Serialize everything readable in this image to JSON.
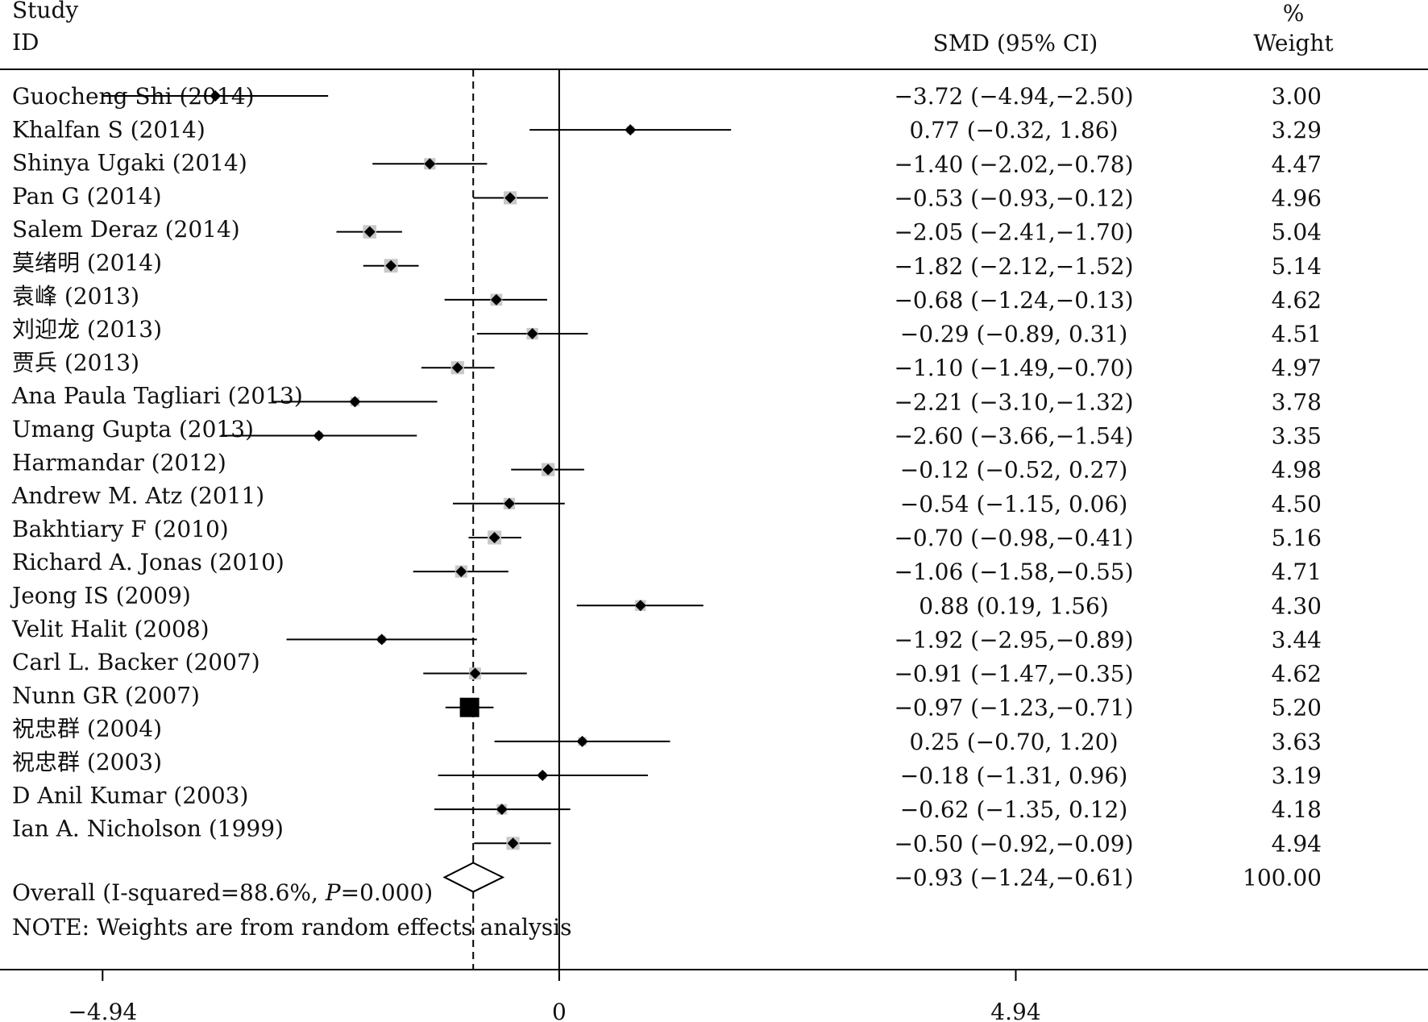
{
  "header": {
    "study_line1": "Study",
    "study_line2": "ID",
    "smd_header": "SMD (95% CI)",
    "weight_line1": "%",
    "weight_line2": "Weight"
  },
  "chart_data": {
    "type": "forest",
    "xlim": [
      -6.05,
      9.4
    ],
    "x_ticks": [
      -4.94,
      0,
      4.94
    ],
    "x_tick_labels": [
      "−4.94",
      "0",
      "4.94"
    ],
    "null_line": 0,
    "overall_line": -0.93,
    "study_labels": [
      "Guocheng Shi (2014)",
      "Khalfan S (2014)",
      "Shinya Ugaki (2014)",
      "Pan G (2014)",
      "Salem Deraz (2014)",
      "莫绪明 (2014)",
      "袁峰 (2013)",
      "刘迎龙 (2013)",
      "贾兵 (2013)",
      "Ana Paula Tagliari (2013)",
      "Umang Gupta (2013)",
      "Harmandar (2012)",
      "Andrew M. Atz (2011)",
      "Bakhtiary F (2010)",
      "Richard A. Jonas (2010)",
      "Jeong IS (2009)",
      "Velit Halit (2008)",
      "Carl L. Backer (2007)",
      "Nunn GR (2007)",
      "祝忠群 (2004)",
      "祝忠群 (2003)",
      "D Anil Kumar (2003)",
      "Ian A. Nicholson (1999)"
    ],
    "estimates": [
      {
        "smd": -3.72,
        "lo": -4.94,
        "hi": -2.5,
        "weight": 3.0,
        "text": "−3.72 (−4.94,−2.50)",
        "weight_text": "3.00"
      },
      {
        "smd": 0.77,
        "lo": -0.32,
        "hi": 1.86,
        "weight": 3.29,
        "text": "0.77 (−0.32, 1.86)",
        "weight_text": "3.29"
      },
      {
        "smd": -1.4,
        "lo": -2.02,
        "hi": -0.78,
        "weight": 4.47,
        "text": "−1.40 (−2.02,−0.78)",
        "weight_text": "4.47"
      },
      {
        "smd": -0.53,
        "lo": -0.93,
        "hi": -0.12,
        "weight": 4.96,
        "text": "−0.53 (−0.93,−0.12)",
        "weight_text": "4.96"
      },
      {
        "smd": -2.05,
        "lo": -2.41,
        "hi": -1.7,
        "weight": 5.04,
        "text": "−2.05 (−2.41,−1.70)",
        "weight_text": "5.04"
      },
      {
        "smd": -1.82,
        "lo": -2.12,
        "hi": -1.52,
        "weight": 5.14,
        "text": "−1.82 (−2.12,−1.52)",
        "weight_text": "5.14"
      },
      {
        "smd": -0.68,
        "lo": -1.24,
        "hi": -0.13,
        "weight": 4.62,
        "text": "−0.68 (−1.24,−0.13)",
        "weight_text": "4.62"
      },
      {
        "smd": -0.29,
        "lo": -0.89,
        "hi": 0.31,
        "weight": 4.51,
        "text": "−0.29 (−0.89, 0.31)",
        "weight_text": "4.51"
      },
      {
        "smd": -1.1,
        "lo": -1.49,
        "hi": -0.7,
        "weight": 4.97,
        "text": "−1.10 (−1.49,−0.70)",
        "weight_text": "4.97"
      },
      {
        "smd": -2.21,
        "lo": -3.1,
        "hi": -1.32,
        "weight": 3.78,
        "text": "−2.21 (−3.10,−1.32)",
        "weight_text": "3.78"
      },
      {
        "smd": -2.6,
        "lo": -3.66,
        "hi": -1.54,
        "weight": 3.35,
        "text": "−2.60 (−3.66,−1.54)",
        "weight_text": "3.35"
      },
      {
        "smd": -0.12,
        "lo": -0.52,
        "hi": 0.27,
        "weight": 4.98,
        "text": "−0.12 (−0.52, 0.27)",
        "weight_text": "4.98"
      },
      {
        "smd": -0.54,
        "lo": -1.15,
        "hi": 0.06,
        "weight": 4.5,
        "text": "−0.54 (−1.15, 0.06)",
        "weight_text": "4.50"
      },
      {
        "smd": -0.7,
        "lo": -0.98,
        "hi": -0.41,
        "weight": 5.16,
        "text": "−0.70 (−0.98,−0.41)",
        "weight_text": "5.16"
      },
      {
        "smd": -1.06,
        "lo": -1.58,
        "hi": -0.55,
        "weight": 4.71,
        "text": "−1.06 (−1.58,−0.55)",
        "weight_text": "4.71"
      },
      {
        "smd": 0.88,
        "lo": 0.19,
        "hi": 1.56,
        "weight": 4.3,
        "text": "0.88 (0.19, 1.56)",
        "weight_text": "4.30"
      },
      {
        "smd": -1.92,
        "lo": -2.95,
        "hi": -0.89,
        "weight": 3.44,
        "text": "−1.92 (−2.95,−0.89)",
        "weight_text": "3.44"
      },
      {
        "smd": -0.91,
        "lo": -1.47,
        "hi": -0.35,
        "weight": 4.62,
        "text": "−0.91 (−1.47,−0.35)",
        "weight_text": "4.62"
      },
      {
        "smd": -0.97,
        "lo": -1.23,
        "hi": -0.71,
        "weight": 5.2,
        "text": "−0.97 (−1.23,−0.71)",
        "weight_text": "5.20"
      },
      {
        "smd": 0.25,
        "lo": -0.7,
        "hi": 1.2,
        "weight": 3.63,
        "text": "0.25 (−0.70, 1.20)",
        "weight_text": "3.63"
      },
      {
        "smd": -0.18,
        "lo": -1.31,
        "hi": 0.96,
        "weight": 3.19,
        "text": "−0.18 (−1.31, 0.96)",
        "weight_text": "3.19"
      },
      {
        "smd": -0.62,
        "lo": -1.35,
        "hi": 0.12,
        "weight": 4.18,
        "text": "−0.62 (−1.35, 0.12)",
        "weight_text": "4.18"
      },
      {
        "smd": -0.5,
        "lo": -0.92,
        "hi": -0.09,
        "weight": 4.94,
        "text": "−0.50 (−0.92,−0.09)",
        "weight_text": "4.94"
      }
    ],
    "overall": {
      "label_prefix": "Overall (I-squared=88.6%, ",
      "label_p": "P",
      "label_suffix": "=0.000)",
      "smd": -0.93,
      "lo": -1.24,
      "hi": -0.61,
      "text": "−0.93 (−1.24,−0.61)",
      "weight_text": "100.00"
    },
    "note": "NOTE: Weights are from random effects analysis",
    "colors": {
      "weight_box": "#c8c8c8",
      "line": "#000000"
    }
  }
}
